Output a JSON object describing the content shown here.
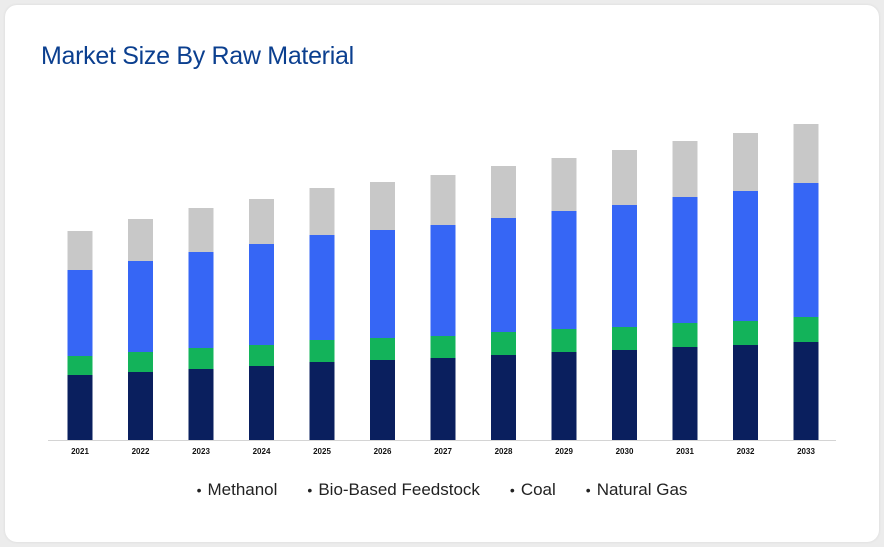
{
  "title": "Market Size By Raw Material",
  "colors": {
    "Methanol": "#0a1f5e",
    "Bio-Based Feedstock": "#13b35a",
    "Coal": "#3666f5",
    "Natural Gas": "#c8c8c8"
  },
  "chart_data": {
    "type": "bar",
    "stacked": true,
    "categories": [
      "2021",
      "2022",
      "2023",
      "2024",
      "2025",
      "2026",
      "2027",
      "2028",
      "2029",
      "2030",
      "2031",
      "2032",
      "2033"
    ],
    "series": [
      {
        "name": "Methanol",
        "values": [
          65,
          68,
          71,
          74,
          78,
          80,
          82,
          85,
          88,
          90,
          93,
          95,
          98
        ]
      },
      {
        "name": "Bio-Based Feedstock",
        "values": [
          19,
          20,
          21,
          21,
          22,
          22,
          22,
          23,
          23,
          23,
          24,
          24,
          25
        ]
      },
      {
        "name": "Coal",
        "values": [
          86,
          91,
          96,
          101,
          105,
          108,
          111,
          114,
          118,
          122,
          126,
          130,
          134
        ]
      },
      {
        "name": "Natural Gas",
        "values": [
          39,
          42,
          44,
          45,
          47,
          48,
          50,
          52,
          53,
          55,
          56,
          58,
          59
        ]
      }
    ],
    "legend": [
      "Methanol",
      "Bio-Based Feedstock",
      "Coal",
      "Natural Gas"
    ],
    "legend_position": "bottom",
    "ylim": [
      0,
      320
    ],
    "grid": false,
    "y_axis_labels": false
  }
}
